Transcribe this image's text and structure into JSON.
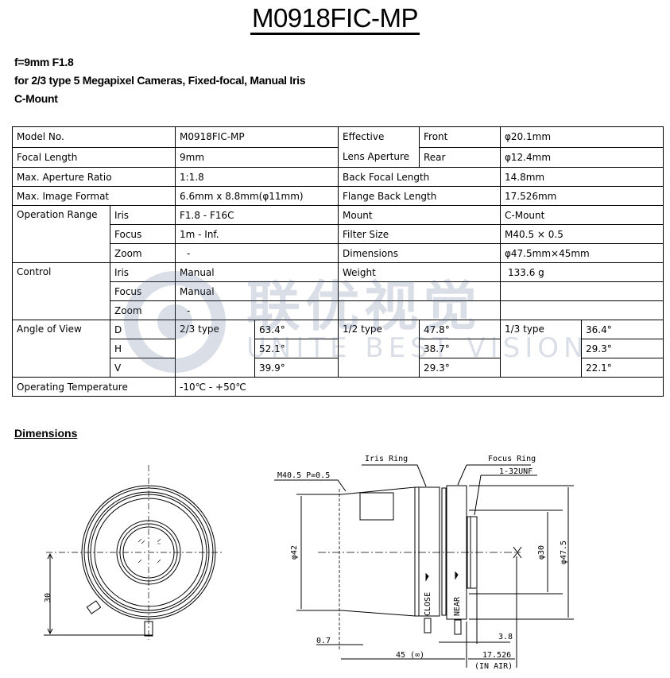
{
  "title": "M0918FIC-MP",
  "subtitle": [
    "f=9mm F1.8",
    "for 2/3 type 5 Megapixel Cameras, Fixed-focal, Manual Iris",
    "C-Mount"
  ],
  "watermark": {
    "cn": "联优视觉",
    "en": "UNITE BEST VISION"
  },
  "spec": {
    "model_label": "Model No.",
    "model": "M0918FIC-MP",
    "focal_label": "Focal Length",
    "focal": "9mm",
    "aperture_label": "Max. Aperture Ratio",
    "aperture": "1:1.8",
    "format_label": "Max. Image Format",
    "format": "6.6mm x 8.8mm(φ11mm)",
    "op_range_label": "Operation Range",
    "iris_label": "Iris",
    "focus_label": "Focus",
    "zoom_label": "Zoom",
    "op_iris": "F1.8 - F16C",
    "op_focus": "1m - Inf.",
    "op_zoom": "-",
    "control_label": "Control",
    "ctl_iris": "Manual",
    "ctl_focus": "Manual",
    "ctl_zoom": "-",
    "aov_label": "Angle of View",
    "d_label": "D",
    "h_label": "H",
    "v_label": "V",
    "temp_label": "Operating Temperature",
    "temp": "-10℃ - +50℃",
    "eff_label1": "Effective",
    "eff_label2": "Lens Aperture",
    "front_label": "Front",
    "front": "φ20.1mm",
    "rear_label": "Rear",
    "rear": "φ12.4mm",
    "bfl_label": "Back Focal Length",
    "bfl": "14.8mm",
    "fbl_label": "Flange Back Length",
    "fbl": "17.526mm",
    "mount_label": "Mount",
    "mount": "C-Mount",
    "filter_label": "Filter Size",
    "filter": "M40.5 × 0.5",
    "dim_label": "Dimensions",
    "dim": "φ47.5mm×45mm",
    "weight_label": "Weight",
    "weight": "133.6 g",
    "aov": [
      {
        "type": "2/3 type",
        "d": "63.4°",
        "h": "52.1°",
        "v": "39.9°"
      },
      {
        "type": "1/2 type",
        "d": "47.8°",
        "h": "38.7°",
        "v": "29.3°"
      },
      {
        "type": "1/3 type",
        "d": "36.4°",
        "h": "29.3°",
        "v": "22.1°"
      }
    ]
  },
  "dimensions": {
    "heading": "Dimensions",
    "front_view": {
      "height": "30"
    },
    "side_view": {
      "thread": "M40.5 P=0.5",
      "iris_ring": "Iris Ring",
      "focus_ring": "Focus Ring",
      "mount_thread": "1-32UNF",
      "d42": "φ42",
      "d30": "φ30",
      "d47": "φ47.5",
      "close": "CLOSE",
      "near": "NEAR",
      "l07": "0.7",
      "l45": "45 (∞)",
      "l38": "3.8",
      "l17": "17.526",
      "in_air": "(IN AIR)"
    }
  }
}
